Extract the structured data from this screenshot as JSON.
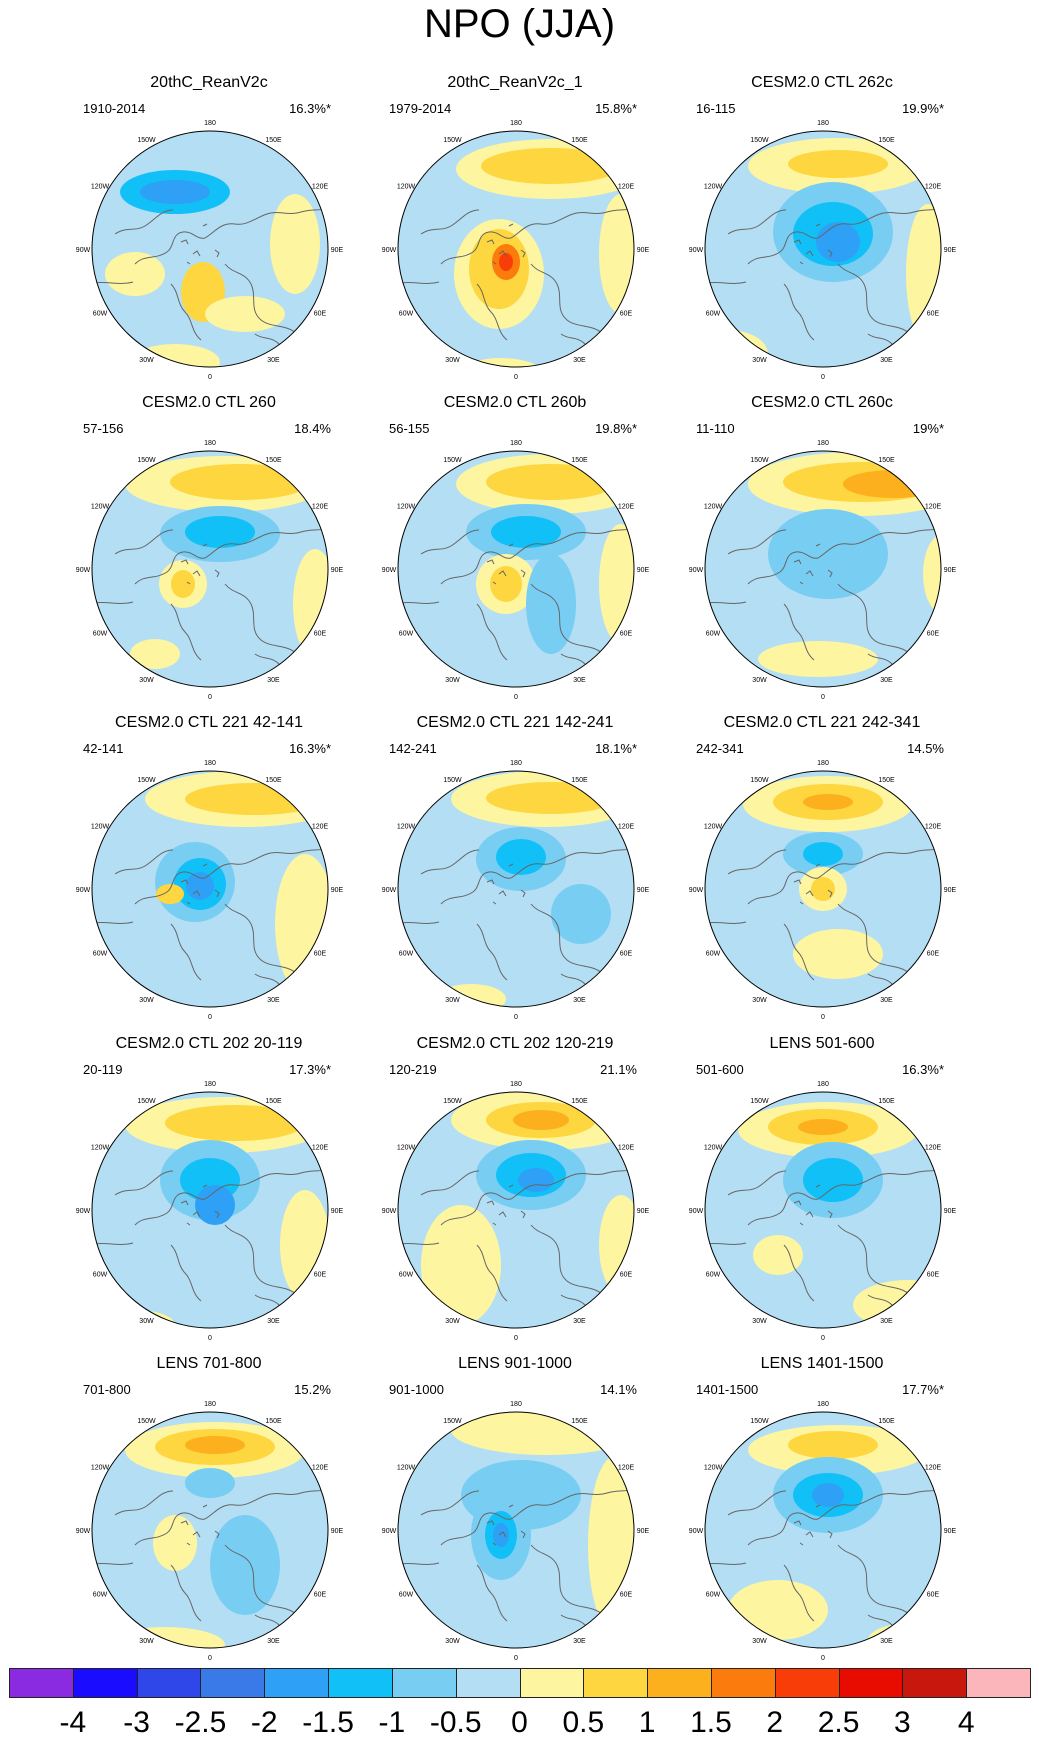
{
  "figure": {
    "title": "NPO (JJA)"
  },
  "chart_data": {
    "type": "heatmap",
    "projection": "north-polar-stereographic",
    "lon_labels": [
      "180",
      "150E",
      "120E",
      "90E",
      "60E",
      "30E",
      "0",
      "30W",
      "60W",
      "90W",
      "120W",
      "150W"
    ],
    "colorbar": {
      "ticks": [
        "-4",
        "-3",
        "-2.5",
        "-2",
        "-1.5",
        "-1",
        "-0.5",
        "0",
        "0.5",
        "1",
        "1.5",
        "2",
        "2.5",
        "3",
        "4"
      ],
      "colors": [
        "#8a2be2",
        "#1a0dff",
        "#2f47e8",
        "#3a7ae8",
        "#2ea0f5",
        "#12c0f8",
        "#78cdf3",
        "#b3def4",
        "#fdf5a0",
        "#fdd640",
        "#fdb01d",
        "#fb7b0d",
        "#f93d08",
        "#e70b00",
        "#c8180e",
        "#fbb6bc"
      ]
    },
    "panels": [
      {
        "title": "20thC_ReanV2c",
        "period": "1910-2014",
        "variance": "16.3%*"
      },
      {
        "title": "20thC_ReanV2c_1",
        "period": "1979-2014",
        "variance": "15.8%*"
      },
      {
        "title": "CESM2.0 CTL 262c",
        "period": "16-115",
        "variance": "19.9%*"
      },
      {
        "title": "CESM2.0 CTL 260",
        "period": "57-156",
        "variance": "18.4%"
      },
      {
        "title": "CESM2.0 CTL 260b",
        "period": "56-155",
        "variance": "19.8%*"
      },
      {
        "title": "CESM2.0 CTL 260c",
        "period": "11-110",
        "variance": "19%*"
      },
      {
        "title": "CESM2.0 CTL 221 42-141",
        "period": "42-141",
        "variance": "16.3%*"
      },
      {
        "title": "CESM2.0 CTL 221 142-241",
        "period": "142-241",
        "variance": "18.1%*"
      },
      {
        "title": "CESM2.0 CTL 221 242-341",
        "period": "242-341",
        "variance": "14.5%"
      },
      {
        "title": "CESM2.0 CTL 202 20-119",
        "period": "20-119",
        "variance": "17.3%*"
      },
      {
        "title": "CESM2.0 CTL 202 120-219",
        "period": "120-219",
        "variance": "21.1%"
      },
      {
        "title": "LENS 501-600",
        "period": "501-600",
        "variance": "16.3%*"
      },
      {
        "title": "LENS 701-800",
        "period": "701-800",
        "variance": "15.2%"
      },
      {
        "title": "LENS 901-1000",
        "period": "901-1000",
        "variance": "14.1%"
      },
      {
        "title": "LENS 1401-1500",
        "period": "1401-1500",
        "variance": "17.7%*"
      }
    ]
  }
}
